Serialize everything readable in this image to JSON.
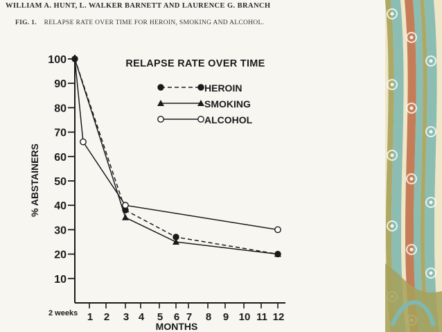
{
  "paper": {
    "header": "WILLIAM A. HUNT, L. WALKER BARNETT AND LAURENCE G. BRANCH",
    "fig_label": "FIG. 1.",
    "fig_caption": "RELAPSE RATE OVER TIME FOR HEROIN, SMOKING AND ALCOHOL."
  },
  "colors": {
    "ink": "#1a1a1a",
    "paper": "#f7f6f1",
    "deco_teal": "#7fb8b0",
    "deco_cream": "#f0e6c8",
    "deco_rust": "#c0714a",
    "deco_olive": "#a6a15a"
  },
  "chart_data": {
    "type": "line",
    "title": "RELAPSE RATE OVER TIME",
    "ylabel": "% ABSTAINERS",
    "xlabel": "MONTHS",
    "ylim": [
      0,
      100
    ],
    "yticks": [
      10,
      20,
      30,
      40,
      50,
      60,
      70,
      80,
      90,
      100
    ],
    "xticks": [
      {
        "value": 0.5,
        "label": "2 weeks"
      },
      {
        "value": 1,
        "label": "1"
      },
      {
        "value": 2,
        "label": "2"
      },
      {
        "value": 3,
        "label": "3"
      },
      {
        "value": 4,
        "label": "4"
      },
      {
        "value": 5,
        "label": "5"
      },
      {
        "value": 6,
        "label": "6"
      },
      {
        "value": 7,
        "label": "7"
      },
      {
        "value": 8,
        "label": "8"
      },
      {
        "value": 9,
        "label": "9"
      },
      {
        "value": 10,
        "label": "10"
      },
      {
        "value": 11,
        "label": "11"
      },
      {
        "value": 12,
        "label": "12"
      }
    ],
    "legend_position": "top-right",
    "grid": false,
    "series": [
      {
        "name": "HEROIN",
        "marker": "filled-circle",
        "line": "dashed",
        "points": [
          [
            0,
            100
          ],
          [
            3,
            38
          ],
          [
            6,
            27
          ],
          [
            12,
            20
          ]
        ]
      },
      {
        "name": "SMOKING",
        "marker": "filled-triangle",
        "line": "solid",
        "points": [
          [
            0,
            100
          ],
          [
            3,
            35
          ],
          [
            6,
            25
          ],
          [
            12,
            20
          ]
        ]
      },
      {
        "name": "ALCOHOL",
        "marker": "open-circle",
        "line": "solid",
        "points": [
          [
            0,
            100
          ],
          [
            0.5,
            66
          ],
          [
            3,
            40
          ],
          [
            12,
            30
          ]
        ]
      }
    ]
  }
}
